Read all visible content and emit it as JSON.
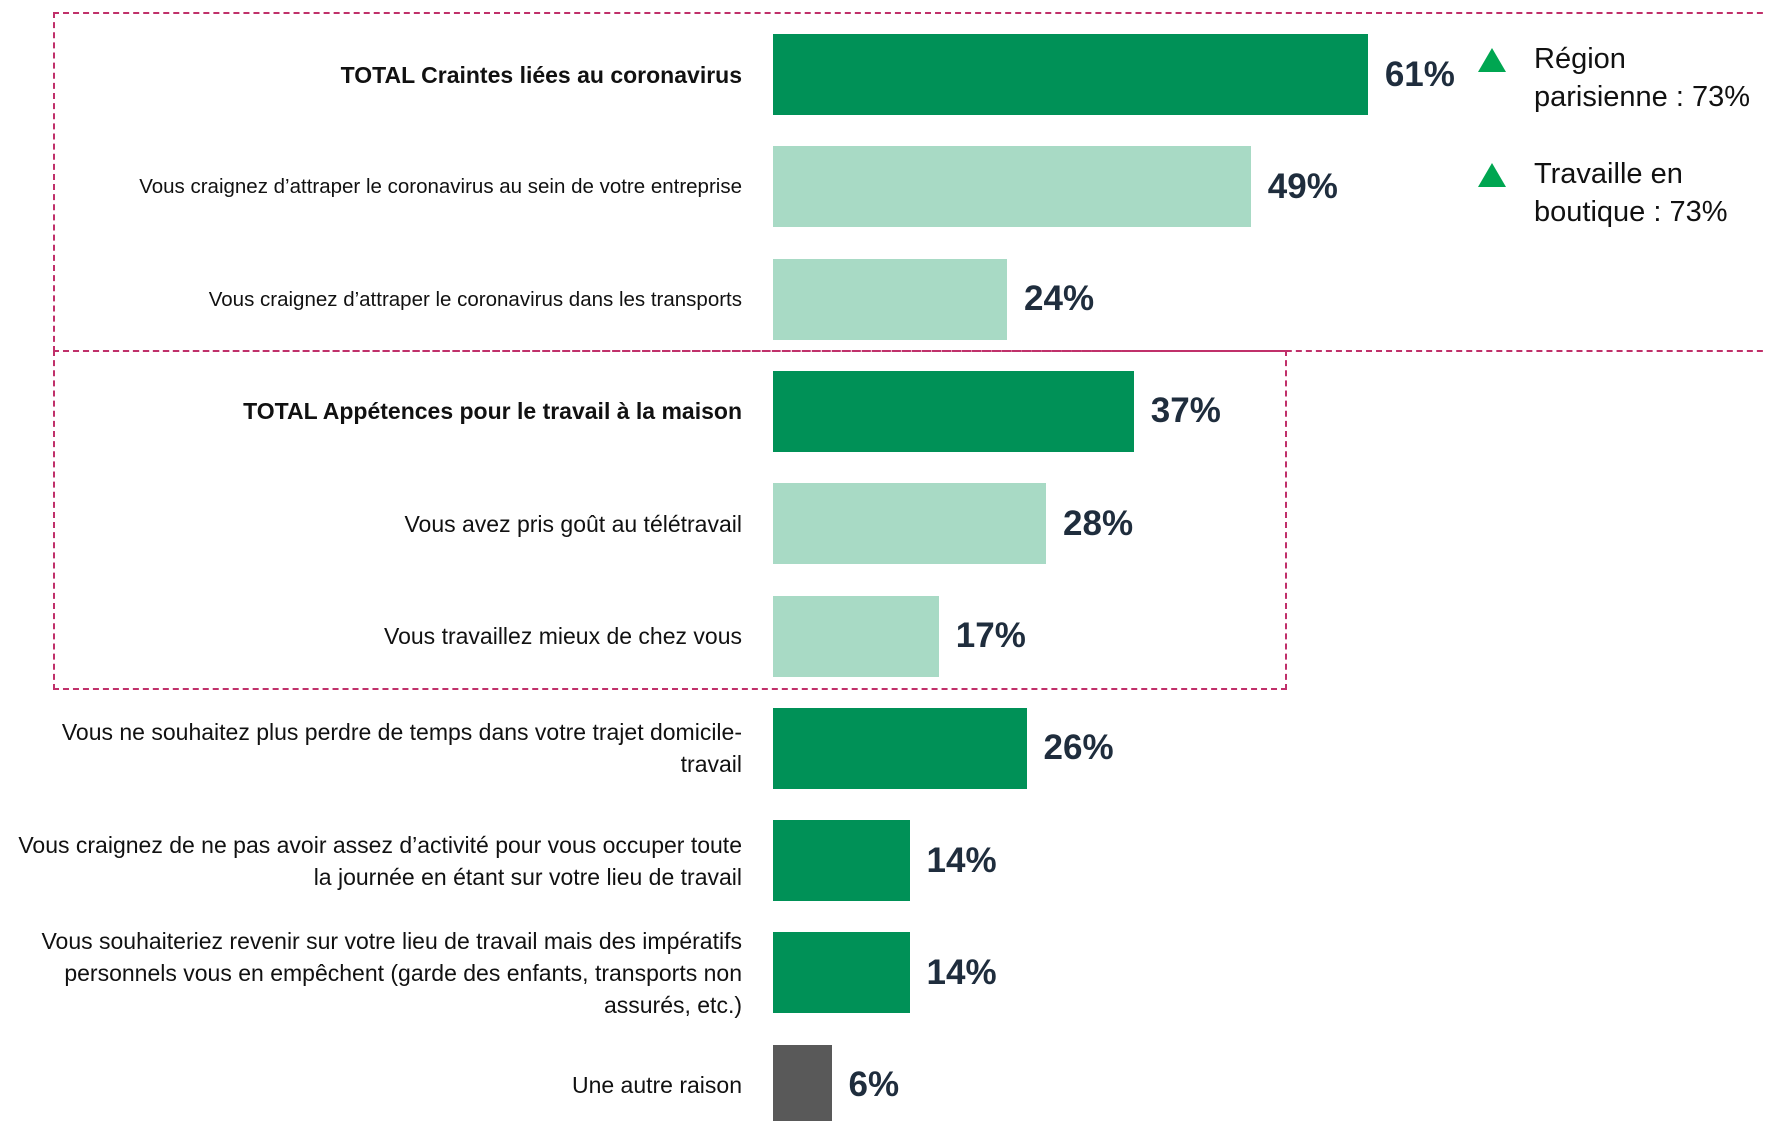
{
  "chart_data": {
    "type": "bar",
    "orientation": "horizontal",
    "categories": [
      "TOTAL Craintes liées au coronavirus",
      "Vous craignez d’attraper le coronavirus au sein de votre entreprise",
      "Vous craignez d’attraper le coronavirus dans les transports",
      "TOTAL Appétences pour le travail à la maison",
      "Vous avez pris goût au télétravail",
      "Vous travaillez mieux de chez vous",
      "Vous ne souhaitez plus perdre de temps dans votre trajet domicile-travail",
      "Vous craignez de ne pas avoir assez d’activité pour vous occuper toute la journée en étant sur votre lieu de travail",
      "Vous souhaiteriez revenir sur votre lieu de travail mais des impératifs personnels vous en empêchent (garde des enfants, transports non assurés, etc.)",
      "Une autre raison"
    ],
    "values": [
      61,
      49,
      24,
      37,
      28,
      17,
      26,
      14,
      14,
      6
    ],
    "value_labels": [
      "61%",
      "49%",
      "24%",
      "37%",
      "28%",
      "17%",
      "26%",
      "14%",
      "14%",
      "6%"
    ],
    "colors": [
      "#009157",
      "#a8dac5",
      "#a8dac5",
      "#009157",
      "#a8dac5",
      "#a8dac5",
      "#009157",
      "#009157",
      "#009157",
      "#595959"
    ],
    "annotations": [
      "Région parisienne : 73%",
      "Travaille en boutique : 73%"
    ],
    "annotation_color": "#00a651"
  }
}
